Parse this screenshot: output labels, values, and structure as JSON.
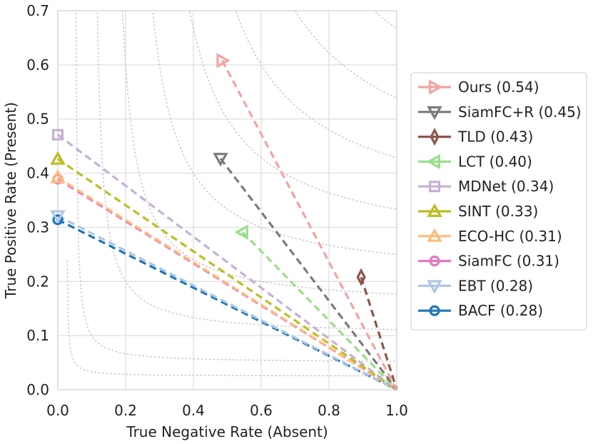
{
  "chart_data": {
    "type": "line",
    "title": "",
    "xlabel": "True Negative Rate (Absent)",
    "ylabel": "True Positive Rate (Present)",
    "xlim": [
      0.0,
      1.0
    ],
    "ylim": [
      0.0,
      0.7
    ],
    "xticks": [
      "0.0",
      "0.2",
      "0.4",
      "0.6",
      "0.8",
      "1.0"
    ],
    "yticks": [
      "0.0",
      "0.1",
      "0.2",
      "0.3",
      "0.4",
      "0.5",
      "0.6",
      "0.7"
    ],
    "grid": true,
    "legend_position": "right",
    "endpoint": {
      "x": 1.0,
      "y": 0.0
    },
    "series": [
      {
        "name": "Ours (0.54)",
        "color": "#f4a3a0",
        "marker": "triangle-right",
        "x": 0.485,
        "y": 0.608
      },
      {
        "name": "SiamFC+R (0.45)",
        "color": "#7b7b7b",
        "marker": "triangle-down",
        "x": 0.48,
        "y": 0.427
      },
      {
        "name": "TLD (0.43)",
        "color": "#8c564b",
        "marker": "thin-diamond",
        "x": 0.895,
        "y": 0.208
      },
      {
        "name": "LCT (0.40)",
        "color": "#98df8a",
        "marker": "triangle-left",
        "x": 0.545,
        "y": 0.291
      },
      {
        "name": "MDNet (0.34)",
        "color": "#c5b0d5",
        "marker": "square",
        "x": 0.0,
        "y": 0.471
      },
      {
        "name": "SINT (0.33)",
        "color": "#bcbd22",
        "marker": "triangle-up",
        "x": 0.0,
        "y": 0.426
      },
      {
        "name": "ECO-HC (0.31)",
        "color": "#ffbb78",
        "marker": "triangle-up",
        "x": 0.0,
        "y": 0.392
      },
      {
        "name": "SiamFC (0.31)",
        "color": "#e377c2",
        "marker": "circle",
        "x": 0.0,
        "y": 0.389
      },
      {
        "name": "EBT (0.28)",
        "color": "#aec7e8",
        "marker": "triangle-down",
        "x": 0.0,
        "y": 0.321
      },
      {
        "name": "BACF (0.28)",
        "color": "#1f77b4",
        "marker": "circle",
        "x": 0.0,
        "y": 0.314
      }
    ],
    "isolines": [
      0.05,
      0.1,
      0.2,
      0.3,
      0.4,
      0.5,
      0.6,
      0.7,
      0.8,
      0.9
    ]
  }
}
